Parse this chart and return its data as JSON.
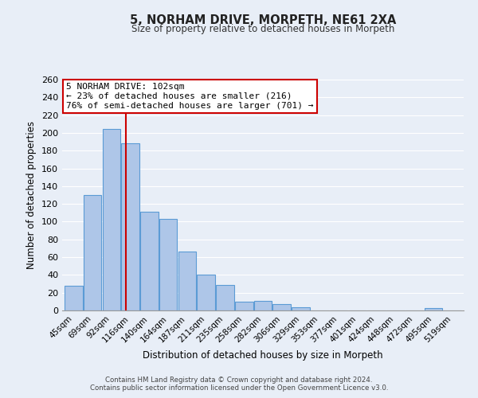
{
  "title": "5, NORHAM DRIVE, MORPETH, NE61 2XA",
  "subtitle": "Size of property relative to detached houses in Morpeth",
  "xlabel": "Distribution of detached houses by size in Morpeth",
  "ylabel": "Number of detached properties",
  "bin_labels": [
    "45sqm",
    "69sqm",
    "92sqm",
    "116sqm",
    "140sqm",
    "164sqm",
    "187sqm",
    "211sqm",
    "235sqm",
    "258sqm",
    "282sqm",
    "306sqm",
    "329sqm",
    "353sqm",
    "377sqm",
    "401sqm",
    "424sqm",
    "448sqm",
    "472sqm",
    "495sqm",
    "519sqm"
  ],
  "bar_heights": [
    28,
    130,
    204,
    188,
    111,
    103,
    66,
    40,
    29,
    10,
    11,
    7,
    4,
    0,
    0,
    0,
    0,
    0,
    0,
    3,
    0
  ],
  "bar_color": "#aec6e8",
  "bar_edge_color": "#5b9bd5",
  "annotation_title": "5 NORHAM DRIVE: 102sqm",
  "annotation_line1": "← 23% of detached houses are smaller (216)",
  "annotation_line2": "76% of semi-detached houses are larger (701) →",
  "annotation_box_color": "#ffffff",
  "annotation_box_edge": "#cc0000",
  "red_line_color": "#cc0000",
  "ylim": [
    0,
    260
  ],
  "yticks": [
    0,
    20,
    40,
    60,
    80,
    100,
    120,
    140,
    160,
    180,
    200,
    220,
    240,
    260
  ],
  "footer_line1": "Contains HM Land Registry data © Crown copyright and database right 2024.",
  "footer_line2": "Contains public sector information licensed under the Open Government Licence v3.0.",
  "bg_color": "#e8eef7",
  "plot_bg_color": "#e8eef7",
  "grid_color": "#ffffff"
}
